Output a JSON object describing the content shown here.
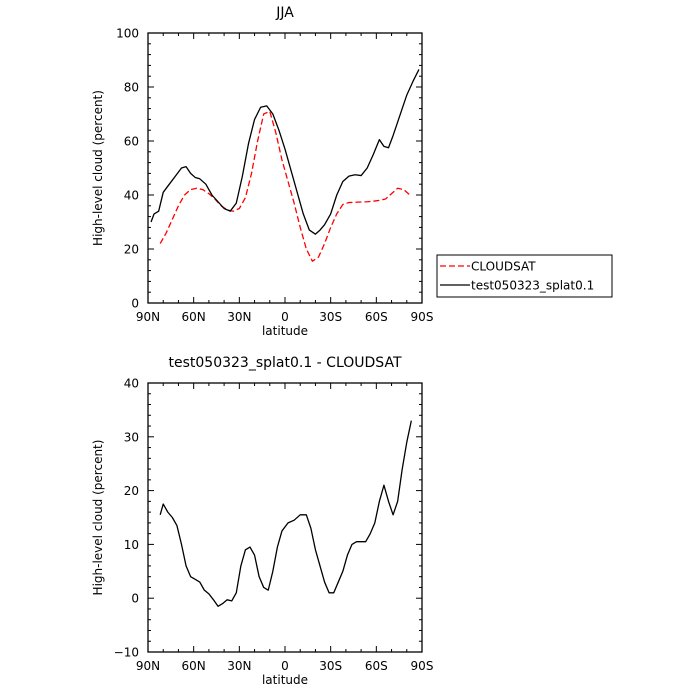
{
  "chart_data": [
    {
      "type": "line",
      "title": "JJA",
      "xlabel": "latitude",
      "ylabel": "High-level cloud (percent)",
      "xlim": [
        90,
        -90
      ],
      "ylim": [
        0,
        100
      ],
      "x_ticks": [
        90,
        60,
        30,
        0,
        -30,
        -60,
        -90
      ],
      "x_tick_labels": [
        "90N",
        "60N",
        "30N",
        "0",
        "30S",
        "60S",
        "90S"
      ],
      "y_ticks": [
        0,
        20,
        40,
        60,
        80,
        100
      ],
      "y_tick_labels": [
        "0",
        "20",
        "40",
        "60",
        "80",
        "100"
      ],
      "legend_position": "outside-right",
      "series": [
        {
          "name": "CLOUDSAT",
          "color": "#ff0000",
          "dash": "dashed",
          "x": [
            82,
            78,
            74,
            70,
            66,
            62,
            58,
            54,
            50,
            46,
            42,
            38,
            34,
            30,
            26,
            22,
            18,
            14,
            10,
            6,
            2,
            -2,
            -6,
            -10,
            -14,
            -18,
            -22,
            -26,
            -30,
            -34,
            -38,
            -42,
            -46,
            -50,
            -54,
            -58,
            -62,
            -66,
            -70,
            -74,
            -78,
            -82
          ],
          "values": [
            22,
            26,
            31,
            36,
            40,
            42,
            42.5,
            42,
            40.5,
            38.5,
            36,
            34.5,
            34,
            35,
            39,
            48,
            60,
            70,
            71,
            63,
            53,
            45,
            37,
            28,
            20,
            15.5,
            17,
            22,
            28,
            33,
            36.5,
            37.2,
            37.3,
            37.4,
            37.5,
            37.7,
            38,
            38.5,
            40.5,
            42.5,
            42,
            40
          ]
        },
        {
          "name": "test050323_splat0.1",
          "color": "#000000",
          "dash": "solid",
          "x": [
            88,
            86,
            83,
            80,
            76,
            72,
            68,
            65,
            62,
            59,
            56,
            52,
            48,
            44,
            40,
            36,
            32,
            28,
            24,
            20,
            16,
            12,
            8,
            4,
            0,
            -4,
            -8,
            -12,
            -16,
            -20,
            -23,
            -26,
            -30,
            -34,
            -38,
            -42,
            -46,
            -50,
            -54,
            -58,
            -62,
            -65,
            -68,
            -71,
            -74,
            -77,
            -80,
            -84,
            -88
          ],
          "values": [
            30,
            33,
            34,
            41,
            44,
            47,
            50,
            50.5,
            48,
            46.5,
            46,
            44,
            40,
            37.5,
            35,
            34,
            37,
            47,
            59,
            68,
            72.5,
            73,
            70,
            64,
            57,
            49,
            41,
            33,
            27,
            25.5,
            27,
            29,
            33,
            40,
            45,
            47,
            47.5,
            47.2,
            50,
            55,
            60.5,
            58,
            57.5,
            62,
            67,
            72,
            77,
            82,
            86.5
          ]
        }
      ]
    },
    {
      "type": "line",
      "title": "test050323_splat0.1 - CLOUDSAT",
      "xlabel": "latitude",
      "ylabel": "High-level cloud (percent)",
      "xlim": [
        90,
        -90
      ],
      "ylim": [
        -10,
        40
      ],
      "x_ticks": [
        90,
        60,
        30,
        0,
        -30,
        -60,
        -90
      ],
      "x_tick_labels": [
        "90N",
        "60N",
        "30N",
        "0",
        "30S",
        "60S",
        "90S"
      ],
      "y_ticks": [
        -10,
        0,
        10,
        20,
        30,
        40
      ],
      "y_tick_labels": [
        "−10",
        "0",
        "10",
        "20",
        "30",
        "40"
      ],
      "series": [
        {
          "color": "#000000",
          "dash": "solid",
          "x": [
            82,
            80,
            77,
            74,
            71,
            68,
            65,
            62,
            59,
            56,
            53,
            50,
            47,
            44,
            41,
            38,
            35,
            32,
            29,
            26,
            23,
            20,
            17,
            14,
            11,
            8,
            5,
            2,
            -2,
            -6,
            -10,
            -14,
            -17,
            -20,
            -23,
            -26,
            -29,
            -32,
            -35,
            -38,
            -41,
            -44,
            -47,
            -50,
            -53,
            -56,
            -59,
            -62,
            -65,
            -68,
            -71,
            -74,
            -77,
            -80,
            -83
          ],
          "values": [
            15.5,
            17.5,
            16,
            15,
            13.5,
            10,
            6,
            4,
            3.5,
            3,
            1.5,
            0.8,
            -0.3,
            -1.5,
            -1,
            -0.3,
            -0.5,
            1,
            6,
            9,
            9.5,
            8,
            4,
            2,
            1.5,
            5,
            9.5,
            12.5,
            14,
            14.5,
            15.5,
            15.5,
            13,
            9,
            6,
            3,
            1,
            1,
            3,
            5,
            8,
            10,
            10.5,
            10.5,
            10.5,
            12,
            14,
            18,
            21,
            18,
            15.5,
            18,
            24,
            29,
            33
          ]
        }
      ]
    }
  ]
}
